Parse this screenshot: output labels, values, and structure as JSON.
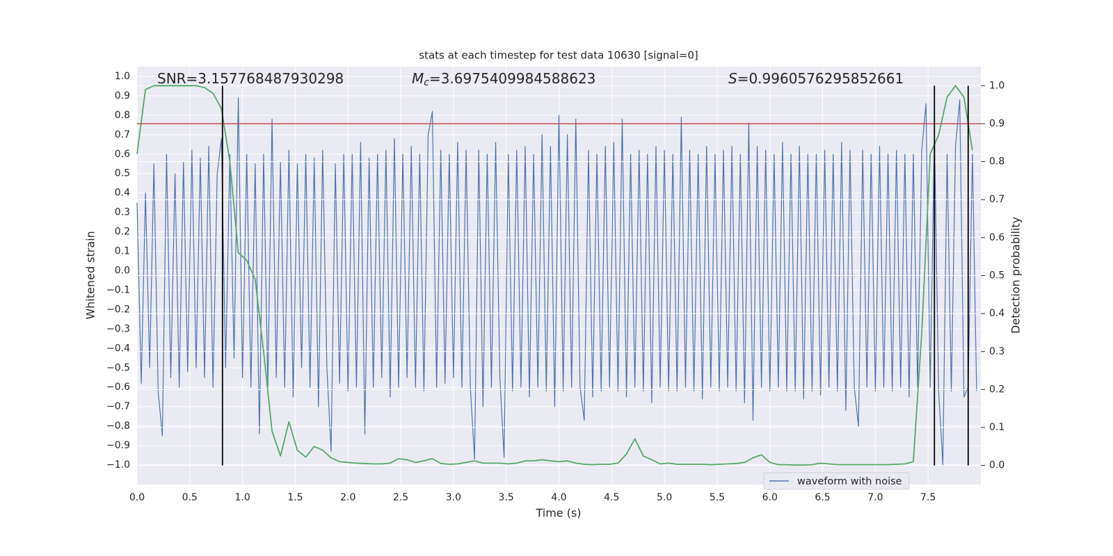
{
  "chart_data": {
    "type": "line",
    "title": "stats at each timestep for test data 10630 [signal=0]",
    "xlabel": "Time (s)",
    "ylabel": "Whitened strain",
    "y2label": "Detection probability",
    "annotations": [
      {
        "text": "SNR=3.157768487930298"
      },
      {
        "symbol": "M",
        "subscript": "c",
        "text": "=3.6975409984588623"
      },
      {
        "symbol": "S",
        "text": "=0.9960576295852661"
      }
    ],
    "xlim": [
      0,
      8
    ],
    "ylim": [
      -1.1,
      1.05
    ],
    "y2lim": [
      -0.05,
      1.05
    ],
    "xticks": [
      {
        "value": 0,
        "label": "0.0"
      },
      {
        "value": 0.5,
        "label": "0.5"
      },
      {
        "value": 1,
        "label": "1.0"
      },
      {
        "value": 1.5,
        "label": "1.5"
      },
      {
        "value": 2,
        "label": "2.0"
      },
      {
        "value": 2.5,
        "label": "2.5"
      },
      {
        "value": 3,
        "label": "3.0"
      },
      {
        "value": 3.5,
        "label": "3.5"
      },
      {
        "value": 4,
        "label": "4.0"
      },
      {
        "value": 4.5,
        "label": "4.5"
      },
      {
        "value": 5,
        "label": "5.0"
      },
      {
        "value": 5.5,
        "label": "5.5"
      },
      {
        "value": 6,
        "label": "6.0"
      },
      {
        "value": 6.5,
        "label": "6.5"
      },
      {
        "value": 7,
        "label": "7.0"
      },
      {
        "value": 7.5,
        "label": "7.5"
      }
    ],
    "yticks": [
      {
        "value": -1,
        "label": "−1.0"
      },
      {
        "value": -0.9,
        "label": "−0.9"
      },
      {
        "value": -0.8,
        "label": "−0.8"
      },
      {
        "value": -0.7,
        "label": "−0.7"
      },
      {
        "value": -0.6,
        "label": "−0.6"
      },
      {
        "value": -0.5,
        "label": "−0.5"
      },
      {
        "value": -0.4,
        "label": "−0.4"
      },
      {
        "value": -0.3,
        "label": "−0.3"
      },
      {
        "value": -0.2,
        "label": "−0.2"
      },
      {
        "value": -0.1,
        "label": "−0.1"
      },
      {
        "value": 0,
        "label": "0.0"
      },
      {
        "value": 0.1,
        "label": "0.1"
      },
      {
        "value": 0.2,
        "label": "0.2"
      },
      {
        "value": 0.3,
        "label": "0.3"
      },
      {
        "value": 0.4,
        "label": "0.4"
      },
      {
        "value": 0.5,
        "label": "0.5"
      },
      {
        "value": 0.6,
        "label": "0.6"
      },
      {
        "value": 0.7,
        "label": "0.7"
      },
      {
        "value": 0.8,
        "label": "0.8"
      },
      {
        "value": 0.9,
        "label": "0.9"
      },
      {
        "value": 1,
        "label": "1.0"
      }
    ],
    "y2ticks": [
      {
        "value": 0,
        "label": "0.0"
      },
      {
        "value": 0.1,
        "label": "0.1"
      },
      {
        "value": 0.2,
        "label": "0.2"
      },
      {
        "value": 0.3,
        "label": "0.3"
      },
      {
        "value": 0.4,
        "label": "0.4"
      },
      {
        "value": 0.5,
        "label": "0.5"
      },
      {
        "value": 0.6,
        "label": "0.6"
      },
      {
        "value": 0.7,
        "label": "0.7"
      },
      {
        "value": 0.8,
        "label": "0.8"
      },
      {
        "value": 0.9,
        "label": "0.9"
      },
      {
        "value": 1,
        "label": "1.0"
      }
    ],
    "grid": true,
    "legend": "lower right",
    "series": [
      {
        "name": "waveform with noise",
        "color": "#4c72b0",
        "x": [
          0,
          0.04,
          0.08,
          0.12,
          0.16,
          0.2,
          0.24,
          0.28,
          0.32,
          0.36,
          0.4,
          0.44,
          0.48,
          0.52,
          0.56,
          0.6,
          0.64,
          0.68,
          0.72,
          0.76,
          0.8,
          0.84,
          0.88,
          0.92,
          0.96,
          1,
          1.04,
          1.08,
          1.12,
          1.16,
          1.2,
          1.24,
          1.28,
          1.32,
          1.36,
          1.4,
          1.44,
          1.48,
          1.52,
          1.56,
          1.6,
          1.64,
          1.68,
          1.72,
          1.76,
          1.8,
          1.84,
          1.88,
          1.92,
          1.96,
          2,
          2.04,
          2.08,
          2.12,
          2.16,
          2.2,
          2.24,
          2.28,
          2.32,
          2.36,
          2.4,
          2.44,
          2.48,
          2.52,
          2.56,
          2.6,
          2.64,
          2.68,
          2.72,
          2.76,
          2.8,
          2.84,
          2.88,
          2.92,
          2.96,
          3,
          3.04,
          3.08,
          3.12,
          3.16,
          3.2,
          3.24,
          3.28,
          3.32,
          3.36,
          3.4,
          3.44,
          3.48,
          3.52,
          3.56,
          3.6,
          3.64,
          3.68,
          3.72,
          3.76,
          3.8,
          3.84,
          3.88,
          3.92,
          3.96,
          4,
          4.04,
          4.08,
          4.12,
          4.16,
          4.2,
          4.24,
          4.28,
          4.32,
          4.36,
          4.4,
          4.44,
          4.48,
          4.52,
          4.56,
          4.6,
          4.64,
          4.68,
          4.72,
          4.76,
          4.8,
          4.84,
          4.88,
          4.92,
          4.96,
          5,
          5.04,
          5.08,
          5.12,
          5.16,
          5.2,
          5.24,
          5.28,
          5.32,
          5.36,
          5.4,
          5.44,
          5.48,
          5.52,
          5.56,
          5.6,
          5.64,
          5.68,
          5.72,
          5.76,
          5.8,
          5.84,
          5.88,
          5.92,
          5.96,
          6,
          6.04,
          6.08,
          6.12,
          6.16,
          6.2,
          6.24,
          6.28,
          6.32,
          6.36,
          6.4,
          6.44,
          6.48,
          6.52,
          6.56,
          6.6,
          6.64,
          6.68,
          6.72,
          6.76,
          6.8,
          6.84,
          6.88,
          6.92,
          6.96,
          7,
          7.04,
          7.08,
          7.12,
          7.16,
          7.2,
          7.24,
          7.28,
          7.32,
          7.36,
          7.4,
          7.44,
          7.48,
          7.52,
          7.56,
          7.6,
          7.64,
          7.68,
          7.72,
          7.76,
          7.8,
          7.84,
          7.88,
          7.92,
          7.96
        ],
        "values": [
          0.35,
          -0.58,
          0.4,
          -0.5,
          0.55,
          -0.62,
          -0.85,
          0.6,
          -0.55,
          0.5,
          -0.6,
          0.56,
          -0.52,
          0.62,
          -0.5,
          0.58,
          -0.55,
          0.64,
          -0.6,
          0.5,
          0.68,
          -0.5,
          0.6,
          -0.45,
          0.89,
          -0.55,
          0.6,
          -0.6,
          0.55,
          -0.84,
          0.6,
          -0.6,
          0.78,
          -0.55,
          0.56,
          -0.6,
          0.62,
          -0.65,
          0.55,
          -0.5,
          0.6,
          -0.6,
          0.58,
          -0.7,
          0.62,
          -0.5,
          -0.93,
          0.55,
          -0.58,
          0.6,
          -0.62,
          0.6,
          -0.6,
          0.66,
          -0.84,
          0.58,
          -0.6,
          0.6,
          -0.55,
          0.62,
          -0.65,
          0.68,
          -0.6,
          0.6,
          -0.55,
          0.64,
          -0.6,
          0.6,
          -0.62,
          0.7,
          0.82,
          -0.6,
          0.62,
          -0.58,
          0.6,
          -0.55,
          0.66,
          -0.6,
          0.62,
          -0.6,
          -0.97,
          0.62,
          -0.7,
          0.6,
          -0.6,
          0.66,
          -0.55,
          -0.96,
          0.6,
          -0.62,
          0.62,
          -0.6,
          0.64,
          -0.65,
          0.6,
          -0.6,
          0.7,
          -0.62,
          0.64,
          -0.7,
          0.8,
          -0.62,
          0.7,
          -0.6,
          0.78,
          -0.6,
          -0.77,
          0.62,
          -0.65,
          0.6,
          -0.62,
          0.64,
          -0.6,
          0.66,
          -0.62,
          0.78,
          -0.65,
          0.6,
          -0.6,
          0.62,
          -0.62,
          0.6,
          -0.68,
          0.64,
          -0.6,
          0.62,
          -0.62,
          0.6,
          -0.62,
          0.79,
          -0.6,
          0.62,
          -0.62,
          0.6,
          -0.66,
          0.64,
          -0.6,
          0.6,
          -0.62,
          0.62,
          -0.6,
          0.64,
          -0.62,
          0.6,
          -0.68,
          0.76,
          -0.77,
          0.64,
          -0.6,
          0.62,
          -0.62,
          0.6,
          -0.6,
          0.66,
          -0.62,
          0.6,
          -0.62,
          0.64,
          -0.66,
          0.6,
          -0.62,
          0.6,
          -0.64,
          0.62,
          -0.6,
          0.6,
          -0.62,
          0.66,
          -0.72,
          0.62,
          -0.6,
          -0.8,
          0.62,
          -0.6,
          0.6,
          -0.62,
          0.64,
          -0.6,
          0.6,
          -0.62,
          0.62,
          -0.6,
          0.6,
          -0.65,
          0.6,
          -0.6,
          0.62,
          0.86,
          -0.6,
          0.7,
          -0.62,
          -1.0,
          0.6,
          -0.62,
          0.64,
          0.88,
          -0.65,
          -0.6,
          0.6,
          -0.62
        ]
      },
      {
        "color": "#55a868",
        "axis": "y2",
        "x": [
          0,
          0.08,
          0.16,
          0.24,
          0.32,
          0.4,
          0.48,
          0.56,
          0.64,
          0.72,
          0.8,
          0.88,
          0.96,
          1.04,
          1.12,
          1.2,
          1.28,
          1.36,
          1.44,
          1.52,
          1.6,
          1.68,
          1.76,
          1.84,
          1.92,
          2,
          2.08,
          2.16,
          2.24,
          2.32,
          2.4,
          2.48,
          2.56,
          2.64,
          2.72,
          2.8,
          2.88,
          2.96,
          3.04,
          3.12,
          3.2,
          3.28,
          3.36,
          3.44,
          3.52,
          3.6,
          3.68,
          3.76,
          3.84,
          3.92,
          4,
          4.08,
          4.16,
          4.24,
          4.32,
          4.4,
          4.48,
          4.56,
          4.64,
          4.72,
          4.8,
          4.88,
          4.96,
          5.04,
          5.12,
          5.2,
          5.28,
          5.36,
          5.44,
          5.52,
          5.6,
          5.68,
          5.76,
          5.84,
          5.92,
          6,
          6.08,
          6.16,
          6.24,
          6.32,
          6.4,
          6.48,
          6.56,
          6.64,
          6.72,
          6.8,
          6.88,
          6.96,
          7.04,
          7.12,
          7.2,
          7.28,
          7.36,
          7.44,
          7.52,
          7.6,
          7.68,
          7.76,
          7.84,
          7.92
        ],
        "values": [
          0.82,
          0.99,
          1.0,
          1.0,
          1.0,
          1.0,
          1.0,
          1.0,
          0.995,
          0.98,
          0.94,
          0.8,
          0.56,
          0.54,
          0.49,
          0.3,
          0.09,
          0.025,
          0.115,
          0.04,
          0.022,
          0.05,
          0.04,
          0.02,
          0.01,
          0.008,
          0.006,
          0.005,
          0.004,
          0.004,
          0.006,
          0.018,
          0.015,
          0.008,
          0.012,
          0.018,
          0.005,
          0.003,
          0.004,
          0.008,
          0.012,
          0.006,
          0.006,
          0.006,
          0.004,
          0.006,
          0.012,
          0.012,
          0.015,
          0.012,
          0.01,
          0.012,
          0.006,
          0.003,
          0.002,
          0.003,
          0.003,
          0.006,
          0.03,
          0.07,
          0.025,
          0.015,
          0.004,
          0.006,
          0.003,
          0.003,
          0.003,
          0.003,
          0.002,
          0.003,
          0.004,
          0.005,
          0.008,
          0.02,
          0.028,
          0.008,
          0.002,
          0.002,
          0.001,
          0.001,
          0.002,
          0.006,
          0.004,
          0.002,
          0.002,
          0.002,
          0.002,
          0.002,
          0.002,
          0.002,
          0.003,
          0.004,
          0.01,
          0.35,
          0.82,
          0.87,
          0.97,
          1.0,
          0.97,
          0.83
        ]
      }
    ],
    "hlines": [
      {
        "value": 0.9,
        "axis": "y2",
        "color": "#c44e52"
      }
    ],
    "vlines": {
      "values": [
        0.81,
        7.56,
        7.88
      ],
      "axis": "y2",
      "ymin": 0,
      "ymax": 1,
      "color": "#000000"
    }
  }
}
